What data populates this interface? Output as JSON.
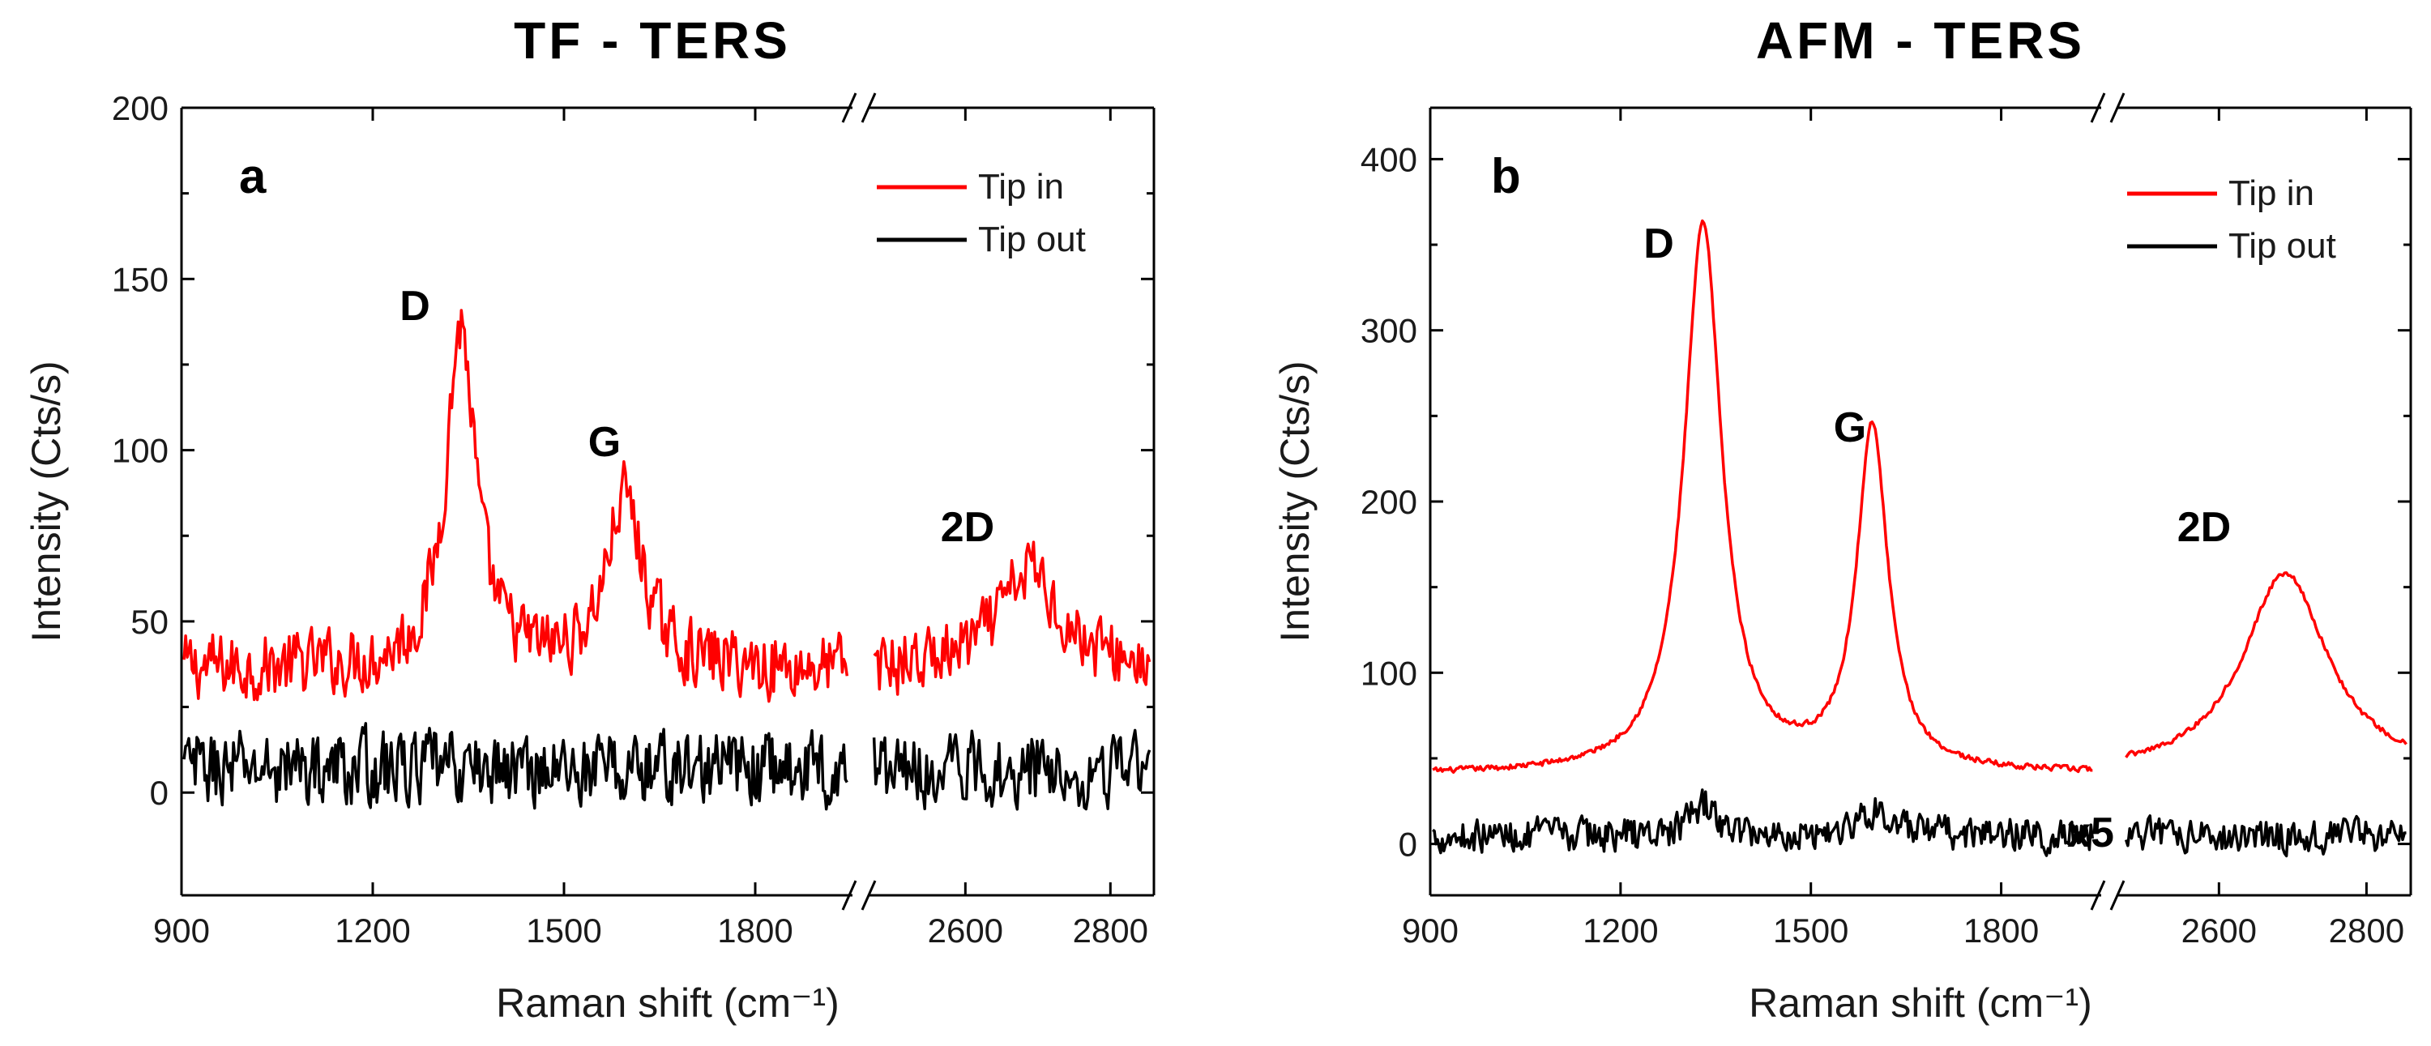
{
  "chart_data": [
    {
      "type": "line",
      "panel_label": "a",
      "title": "TF - TERS",
      "xlabel": "Raman shift (cm⁻¹)",
      "ylabel": "Intensity (Cts/s)",
      "ylim": [
        -30,
        200
      ],
      "y_ticks": [
        "200",
        "150",
        "100",
        "50",
        "0"
      ],
      "x_segments": [
        {
          "range": [
            900,
            1950
          ],
          "ticks": [
            "900",
            "1200",
            "1500",
            "1800"
          ]
        },
        {
          "range": [
            2470,
            2860
          ],
          "ticks": [
            "2600",
            "2800"
          ]
        }
      ],
      "legend": {
        "position": "top-right",
        "entries": [
          "Tip in",
          "Tip out"
        ]
      },
      "colors": {
        "tip_in": "#ff0000",
        "tip_out": "#000000"
      },
      "peak_labels": [
        "D",
        "G",
        "2D"
      ],
      "series": [
        {
          "name": "Tip in",
          "baseline": 36,
          "noise": 9,
          "peaks": [
            {
              "pos": 1338,
              "amp": 100,
              "w": 28
            },
            {
              "pos": 1595,
              "amp": 50,
              "w": 34
            },
            {
              "pos": 2690,
              "amp": 29,
              "w": 48
            }
          ]
        },
        {
          "name": "Tip out",
          "baseline": 7,
          "noise": 10,
          "peaks": []
        }
      ]
    },
    {
      "type": "line",
      "panel_label": "b",
      "title": "AFM - TERS",
      "xlabel": "Raman shift (cm⁻¹)",
      "ylabel": "Intensity (Cts/s)",
      "ylim": [
        -30,
        430
      ],
      "y_ticks": [
        "400",
        "300",
        "200",
        "100",
        "0"
      ],
      "x_segments": [
        {
          "range": [
            900,
            1950
          ],
          "ticks": [
            "900",
            "1200",
            "1500",
            "1800"
          ]
        },
        {
          "range": [
            2470,
            2860
          ],
          "ticks": [
            "2600",
            "2800"
          ]
        }
      ],
      "legend": {
        "position": "top-right",
        "entries": [
          "Tip in",
          "Tip out"
        ]
      },
      "colors": {
        "tip_in": "#ff0000",
        "tip_out": "#000000"
      },
      "peak_labels": [
        "D",
        "G",
        "2D"
      ],
      "scale_note": "x5",
      "series": [
        {
          "name": "Tip in",
          "baseline": 40,
          "noise": 1.5,
          "peaks": [
            {
              "pos": 1330,
              "amp": 320,
              "w": 36
            },
            {
              "pos": 1597,
              "amp": 200,
              "w": 30
            },
            {
              "pos": 2690,
              "amp": 118,
              "w": 70
            }
          ]
        },
        {
          "name": "Tip out",
          "baseline": 5,
          "noise": 9,
          "peaks": [
            {
              "pos": 1330,
              "amp": 18,
              "w": 22
            },
            {
              "pos": 1600,
              "amp": 15,
              "w": 30
            }
          ]
        }
      ]
    }
  ]
}
